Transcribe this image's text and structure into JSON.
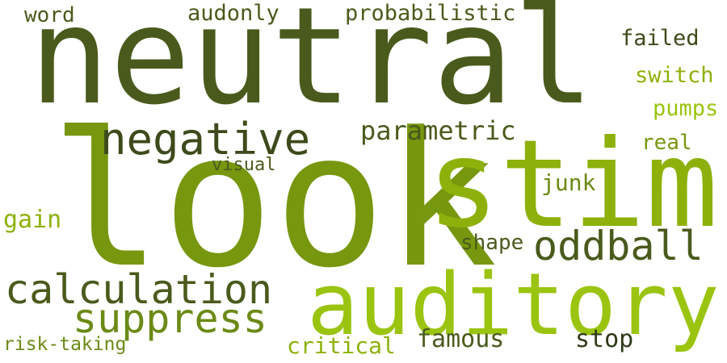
{
  "words": [
    {
      "text": "neutral",
      "color": "#4a5a1c"
    },
    {
      "text": "look",
      "color": "#77970f"
    },
    {
      "text": "stim",
      "color": "#8db10a"
    },
    {
      "text": "auditory",
      "color": "#9ac410"
    },
    {
      "text": "negative",
      "color": "#3d4a1a"
    },
    {
      "text": "calculation",
      "color": "#4a5a1c"
    },
    {
      "text": "oddball",
      "color": "#4a5a1c"
    },
    {
      "text": "suppress",
      "color": "#6b8a16"
    },
    {
      "text": "probabilistic",
      "color": "#4a5a1c"
    },
    {
      "text": "parametric",
      "color": "#4a5a1c"
    },
    {
      "text": "audonly",
      "color": "#4a5a1c"
    },
    {
      "text": "word",
      "color": "#4a5a1c"
    },
    {
      "text": "failed",
      "color": "#3d4a1a"
    },
    {
      "text": "switch",
      "color": "#8db10a"
    },
    {
      "text": "pumps",
      "color": "#9ac410"
    },
    {
      "text": "real",
      "color": "#77970f"
    },
    {
      "text": "junk",
      "color": "#6b8a16"
    },
    {
      "text": "visual",
      "color": "#4a5a1c"
    },
    {
      "text": "gain",
      "color": "#8db10a"
    },
    {
      "text": "shape",
      "color": "#4a5a1c"
    },
    {
      "text": "famous",
      "color": "#4a5a1c"
    },
    {
      "text": "stop",
      "color": "#2f3a17"
    },
    {
      "text": "critical",
      "color": "#8db10a"
    },
    {
      "text": "risk-taking",
      "color": "#6b8a16"
    }
  ]
}
